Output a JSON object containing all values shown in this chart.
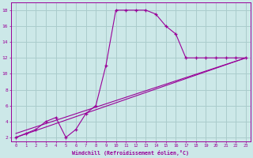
{
  "line1_x": [
    0,
    1,
    2,
    3,
    4,
    5,
    6,
    7,
    8,
    9,
    10,
    11,
    12,
    13,
    14,
    15,
    16,
    17,
    18,
    19,
    20,
    21,
    22,
    23
  ],
  "line1_y": [
    2,
    2.5,
    3.0,
    4.0,
    4.5,
    2.0,
    3.0,
    5.0,
    6.0,
    11.0,
    18.0,
    18.0,
    18.0,
    18.0,
    17.5,
    16.0,
    15.0,
    12.0,
    12.0,
    12.0,
    12.0,
    12.0,
    12.0,
    12.0
  ],
  "line2_x": [
    0,
    23
  ],
  "line2_y": [
    2.0,
    12.0
  ],
  "line3_x": [
    0,
    23
  ],
  "line3_y": [
    2.5,
    12.0
  ],
  "line_color": "#990099",
  "bg_color": "#cce8e8",
  "grid_color": "#aacccc",
  "xlabel": "Windchill (Refroidissement éolien,°C)",
  "xlim": [
    -0.5,
    23.5
  ],
  "ylim": [
    1.5,
    19.0
  ],
  "xticks": [
    0,
    1,
    2,
    3,
    4,
    5,
    6,
    7,
    8,
    9,
    10,
    11,
    12,
    13,
    14,
    15,
    16,
    17,
    18,
    19,
    20,
    21,
    22,
    23
  ],
  "yticks": [
    2,
    4,
    6,
    8,
    10,
    12,
    14,
    16,
    18
  ]
}
